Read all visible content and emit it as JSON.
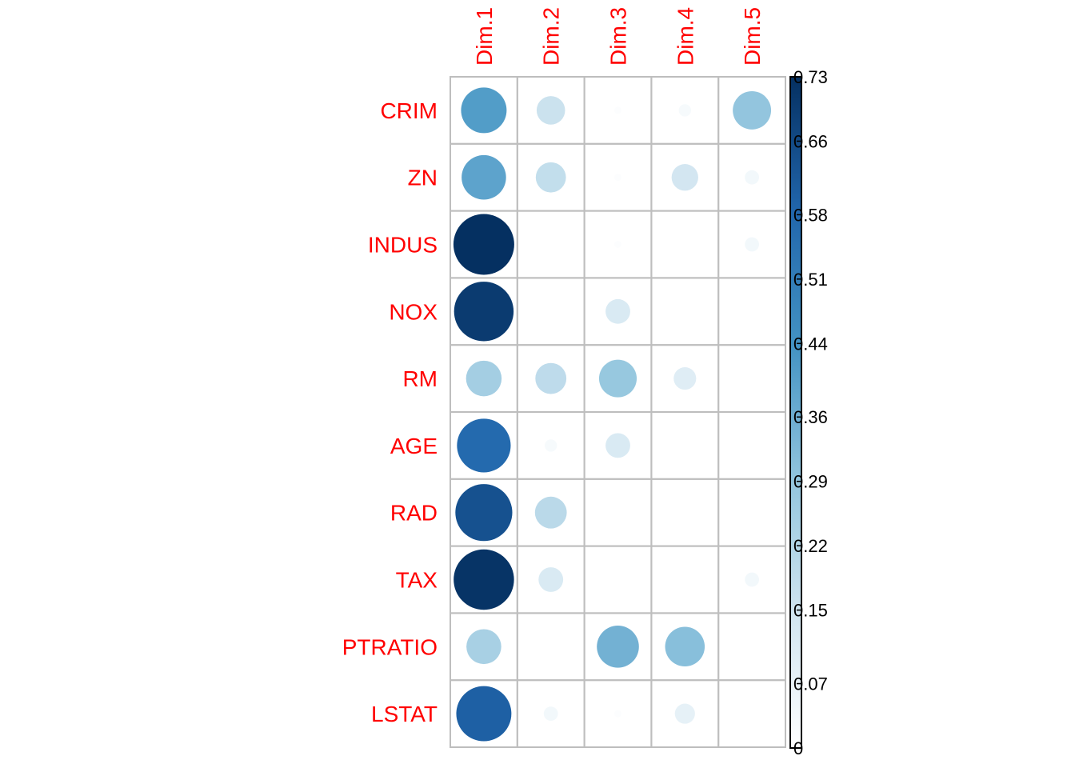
{
  "chart_data": {
    "type": "heatmap",
    "style": "circle",
    "rows": [
      "CRIM",
      "ZN",
      "INDUS",
      "NOX",
      "RM",
      "AGE",
      "RAD",
      "TAX",
      "PTRATIO",
      "LSTAT"
    ],
    "columns": [
      "Dim.1",
      "Dim.2",
      "Dim.3",
      "Dim.4",
      "Dim.5"
    ],
    "values": [
      [
        0.41,
        0.16,
        0.01,
        0.03,
        0.29
      ],
      [
        0.39,
        0.18,
        0.01,
        0.14,
        0.04
      ],
      [
        0.73,
        0.0,
        0.01,
        0.0,
        0.04
      ],
      [
        0.7,
        0.0,
        0.12,
        0.0,
        0.0
      ],
      [
        0.25,
        0.19,
        0.28,
        0.1,
        0.0
      ],
      [
        0.57,
        0.03,
        0.12,
        0.0,
        0.0
      ],
      [
        0.64,
        0.2,
        0.0,
        0.0,
        0.0
      ],
      [
        0.72,
        0.12,
        0.0,
        0.0,
        0.04
      ],
      [
        0.24,
        0.0,
        0.35,
        0.31,
        0.0
      ],
      [
        0.6,
        0.04,
        0.01,
        0.08,
        0.0
      ]
    ],
    "colorbar": {
      "range": [
        0,
        0.73
      ],
      "ticks": [
        "0.73",
        "0.66",
        "0.58",
        "0.51",
        "0.44",
        "0.36",
        "0.29",
        "0.22",
        "0.15",
        "0.07",
        "0"
      ],
      "tick_values": [
        0.73,
        0.66,
        0.58,
        0.51,
        0.44,
        0.36,
        0.29,
        0.22,
        0.15,
        0.07,
        0
      ],
      "colors": [
        "#FFFFFF",
        "#D1E5F0",
        "#92C5DE",
        "#4393C3",
        "#2166AC",
        "#053061"
      ],
      "placement": "right"
    },
    "label_color": "#FF0000",
    "grid_color": "#BEBEBE",
    "grid": true
  }
}
